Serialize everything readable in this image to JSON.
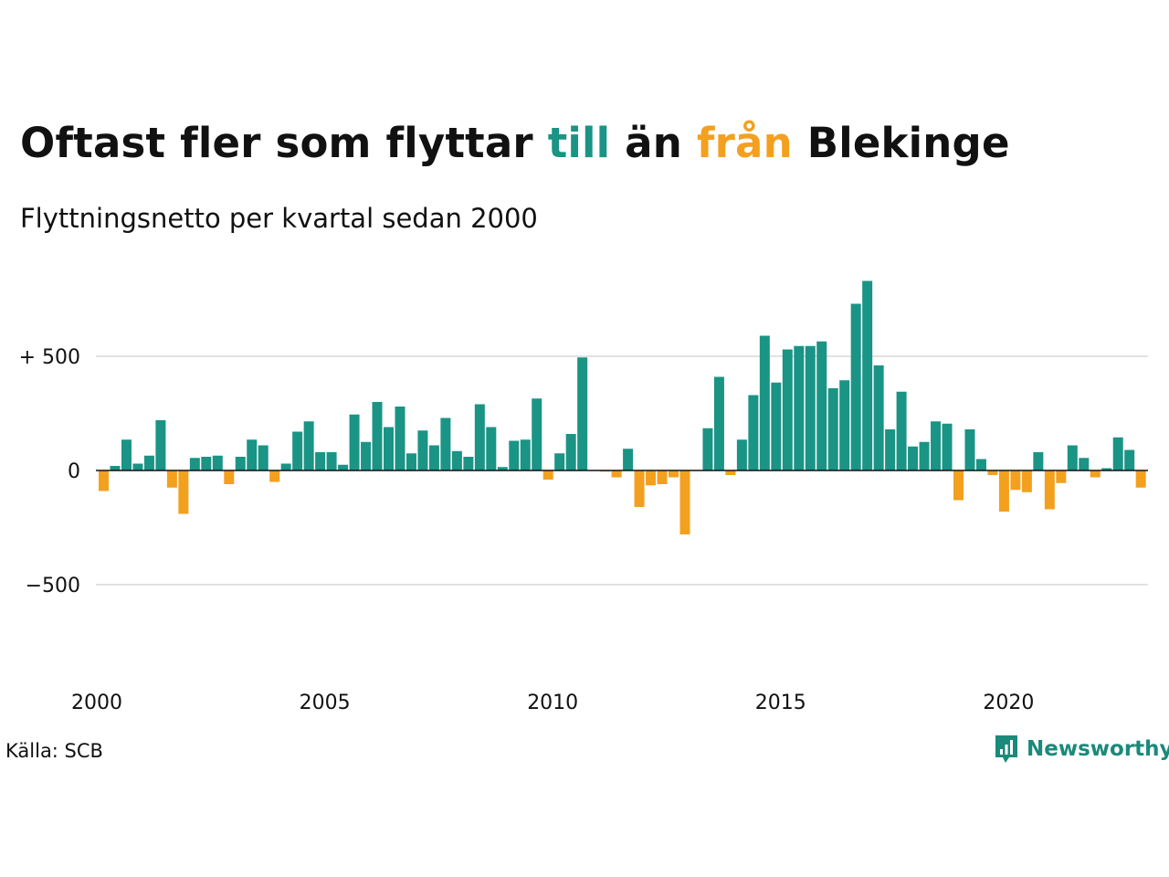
{
  "title": {
    "part1": "Oftast fler som flyttar ",
    "part2": "till",
    "part3": " än ",
    "part4": "från",
    "part5": " Blekinge"
  },
  "subtitle": "Flyttningsnetto per kvartal sedan 2000",
  "source": "Källa: SCB",
  "brand": {
    "name": "Newsworthy",
    "color": "#1a8a7a"
  },
  "colors": {
    "positive": "#1a9485",
    "negative": "#f3a01f",
    "grid": "#e2e2e2",
    "axis": "#111111"
  },
  "chart_data": {
    "type": "bar",
    "x_start": "2000 Q1",
    "y_ticks": [
      {
        "value": 500,
        "label": "+ 500"
      },
      {
        "value": 0,
        "label": "0"
      },
      {
        "value": -500,
        "label": "−500"
      }
    ],
    "x_ticks": [
      {
        "year": 2000,
        "label": "2000"
      },
      {
        "year": 2005,
        "label": "2005"
      },
      {
        "year": 2010,
        "label": "2010"
      },
      {
        "year": 2015,
        "label": "2015"
      },
      {
        "year": 2020,
        "label": "2020"
      }
    ],
    "ylim": [
      -700,
      830
    ],
    "values": [
      -90,
      20,
      135,
      30,
      65,
      220,
      -75,
      -190,
      55,
      60,
      65,
      -60,
      60,
      135,
      110,
      -50,
      30,
      170,
      215,
      80,
      80,
      25,
      245,
      125,
      300,
      190,
      280,
      75,
      175,
      110,
      230,
      85,
      60,
      290,
      190,
      15,
      130,
      135,
      315,
      -40,
      75,
      160,
      495,
      0,
      -5,
      -30,
      95,
      -160,
      -65,
      -60,
      -30,
      -280,
      0,
      185,
      410,
      -20,
      135,
      330,
      590,
      385,
      530,
      545,
      545,
      565,
      360,
      395,
      730,
      830,
      460,
      180,
      345,
      105,
      125,
      215,
      205,
      -130,
      180,
      50,
      -20,
      -180,
      -85,
      -95,
      80,
      -170,
      -55,
      110,
      55,
      -30,
      10,
      145,
      90,
      -75
    ]
  }
}
